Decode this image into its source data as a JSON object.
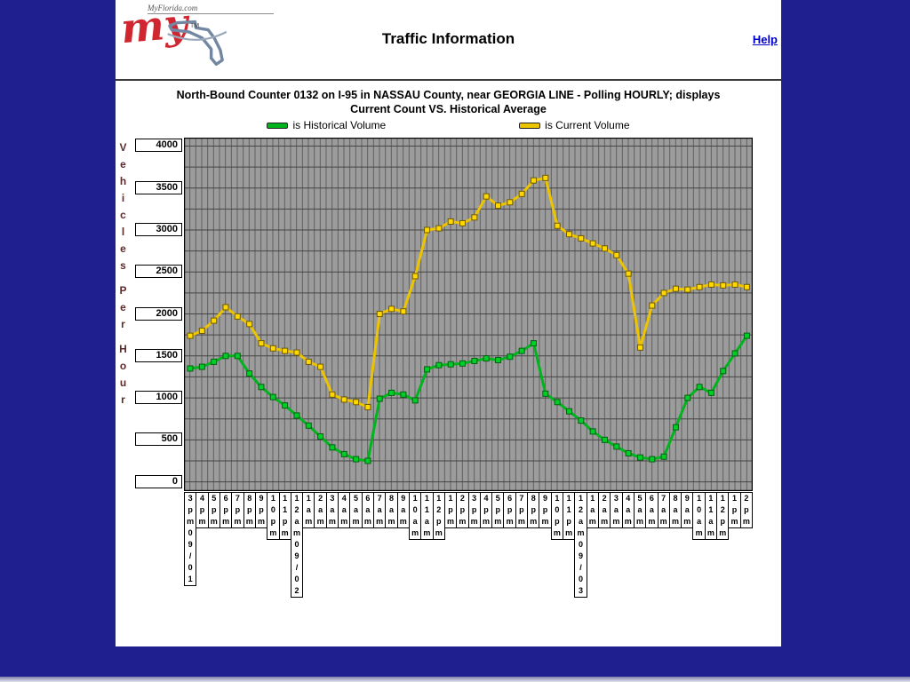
{
  "window": {
    "background": "#1f1f8f",
    "panel_background": "#ffffff"
  },
  "header": {
    "logo_text": "MyFlorida.com",
    "logo_script": "my",
    "logo_tm": "TM",
    "title": "Traffic Information",
    "help_label": "Help"
  },
  "chart_data": {
    "type": "line",
    "title": "North-Bound Counter 0132 on I-95 in NASSAU County, near GEORGIA LINE - Polling HOURLY; displays",
    "subtitle": "Current Count VS. Historical Average",
    "ylabel": "Vehicles Per Hour",
    "yticks": [
      4000,
      3500,
      3000,
      2500,
      2000,
      1500,
      1000,
      500,
      0
    ],
    "ylim": [
      -110,
      4100
    ],
    "grid": true,
    "plot_bg": "#9c9c9c",
    "grid_color_vertical": "#5f5f5f",
    "grid_color_horizontal": "#454545",
    "legend_position": "top",
    "categories": [
      "3pm09/01",
      "4pm",
      "5pm",
      "6pm",
      "7pm",
      "8pm",
      "9pm",
      "10pm",
      "11pm",
      "12am09/02",
      "1am",
      "2am",
      "3am",
      "4am",
      "5am",
      "6am",
      "7am",
      "8am",
      "9am",
      "10am",
      "11am",
      "12pm",
      "1pm",
      "2pm",
      "3pm",
      "4pm",
      "5pm",
      "6pm",
      "7pm",
      "8pm",
      "9pm",
      "10pm",
      "11pm",
      "12am09/03",
      "1am",
      "2am",
      "3am",
      "4am",
      "5am",
      "6am",
      "7am",
      "8am",
      "9am",
      "10am",
      "11am",
      "12pm",
      "1pm",
      "2pm"
    ],
    "series": [
      {
        "name": "is Historical Volume",
        "color": "#00b41e",
        "marker_color": "#00cd28",
        "edge_color": "#065e10",
        "values": [
          1350,
          1370,
          1430,
          1500,
          1500,
          1290,
          1130,
          1010,
          910,
          790,
          670,
          540,
          410,
          330,
          270,
          250,
          990,
          1060,
          1040,
          970,
          1340,
          1390,
          1400,
          1410,
          1440,
          1470,
          1450,
          1490,
          1560,
          1650,
          1050,
          950,
          840,
          730,
          600,
          500,
          420,
          340,
          290,
          270,
          300,
          650,
          1000,
          1130,
          1060,
          1320,
          1530,
          1740
        ]
      },
      {
        "name": "is Current Volume",
        "color": "#ecc400",
        "marker_color": "#ffd800",
        "edge_color": "#6e5800",
        "values": [
          1740,
          1800,
          1920,
          2080,
          1970,
          1880,
          1650,
          1590,
          1560,
          1540,
          1430,
          1370,
          1040,
          980,
          950,
          890,
          2000,
          2060,
          2030,
          2450,
          3000,
          3020,
          3100,
          3080,
          3150,
          3400,
          3290,
          3330,
          3430,
          3590,
          3620,
          3050,
          2950,
          2900,
          2840,
          2780,
          2700,
          2480,
          1600,
          2100,
          2250,
          2300,
          2290,
          2320,
          2350,
          2340,
          2350,
          2320
        ]
      }
    ]
  }
}
